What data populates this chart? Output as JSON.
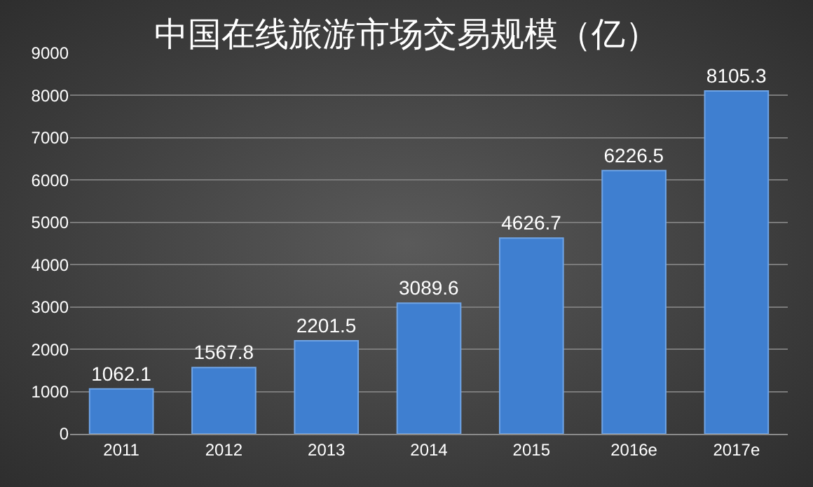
{
  "chart_data": {
    "type": "bar",
    "title": "中国在线旅游市场交易规模（亿）",
    "categories": [
      "2011",
      "2012",
      "2013",
      "2014",
      "2015",
      "2016e",
      "2017e"
    ],
    "values": [
      1062.1,
      1567.8,
      2201.5,
      3089.6,
      4626.7,
      6226.5,
      8105.3
    ],
    "color": "#3f7fd0",
    "ylim": [
      0,
      9000
    ],
    "yticks": [
      0,
      1000,
      2000,
      3000,
      4000,
      5000,
      6000,
      7000,
      8000,
      9000
    ],
    "grid": "y",
    "data_labels": true
  }
}
